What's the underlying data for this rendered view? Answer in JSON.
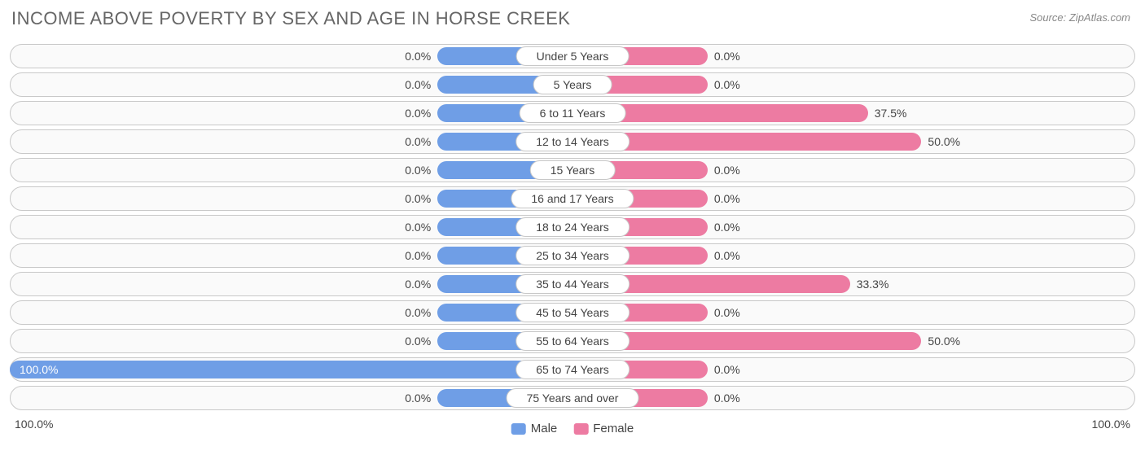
{
  "title": "INCOME ABOVE POVERTY BY SEX AND AGE IN HORSE CREEK",
  "source": "Source: ZipAtlas.com",
  "axis": {
    "left": "100.0%",
    "right": "100.0%"
  },
  "legend": {
    "male": "Male",
    "female": "Female"
  },
  "style": {
    "male_color": "#6f9ee6",
    "female_color": "#ed7ba2",
    "track_bg": "#fafafa",
    "track_border": "#c8c8c8",
    "label_bg": "#ffffff",
    "text_color": "#444444",
    "title_color": "#666666",
    "min_bar_pct": 12,
    "half_width_pct": 50,
    "label_half_pct": 7
  },
  "rows": [
    {
      "category": "Under 5 Years",
      "male_pct": 0.0,
      "female_pct": 0.0,
      "male_label": "0.0%",
      "female_label": "0.0%"
    },
    {
      "category": "5 Years",
      "male_pct": 0.0,
      "female_pct": 0.0,
      "male_label": "0.0%",
      "female_label": "0.0%"
    },
    {
      "category": "6 to 11 Years",
      "male_pct": 0.0,
      "female_pct": 37.5,
      "male_label": "0.0%",
      "female_label": "37.5%"
    },
    {
      "category": "12 to 14 Years",
      "male_pct": 0.0,
      "female_pct": 50.0,
      "male_label": "0.0%",
      "female_label": "50.0%"
    },
    {
      "category": "15 Years",
      "male_pct": 0.0,
      "female_pct": 0.0,
      "male_label": "0.0%",
      "female_label": "0.0%"
    },
    {
      "category": "16 and 17 Years",
      "male_pct": 0.0,
      "female_pct": 0.0,
      "male_label": "0.0%",
      "female_label": "0.0%"
    },
    {
      "category": "18 to 24 Years",
      "male_pct": 0.0,
      "female_pct": 0.0,
      "male_label": "0.0%",
      "female_label": "0.0%"
    },
    {
      "category": "25 to 34 Years",
      "male_pct": 0.0,
      "female_pct": 0.0,
      "male_label": "0.0%",
      "female_label": "0.0%"
    },
    {
      "category": "35 to 44 Years",
      "male_pct": 0.0,
      "female_pct": 33.3,
      "male_label": "0.0%",
      "female_label": "33.3%"
    },
    {
      "category": "45 to 54 Years",
      "male_pct": 0.0,
      "female_pct": 0.0,
      "male_label": "0.0%",
      "female_label": "0.0%"
    },
    {
      "category": "55 to 64 Years",
      "male_pct": 0.0,
      "female_pct": 50.0,
      "male_label": "0.0%",
      "female_label": "50.0%"
    },
    {
      "category": "65 to 74 Years",
      "male_pct": 100.0,
      "female_pct": 0.0,
      "male_label": "100.0%",
      "female_label": "0.0%"
    },
    {
      "category": "75 Years and over",
      "male_pct": 0.0,
      "female_pct": 0.0,
      "male_label": "0.0%",
      "female_label": "0.0%"
    }
  ]
}
